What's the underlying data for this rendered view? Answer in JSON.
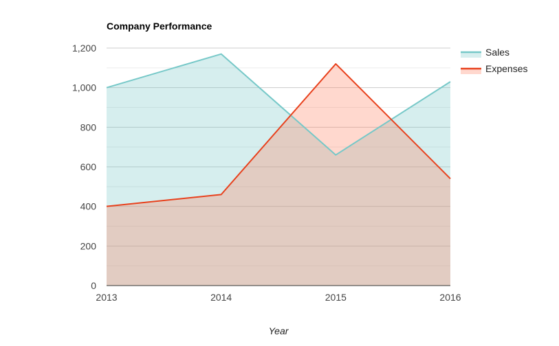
{
  "chart_data": {
    "type": "area",
    "title": "Company Performance",
    "xlabel": "Year",
    "ylabel": "",
    "categories": [
      "2013",
      "2014",
      "2015",
      "2016"
    ],
    "series": [
      {
        "name": "Sales",
        "values": [
          1000,
          1170,
          660,
          1030
        ],
        "color": "#76C8C8",
        "fill": "#76C8C8"
      },
      {
        "name": "Expenses",
        "values": [
          400,
          460,
          1120,
          540
        ],
        "color": "#E8401C",
        "fill": "#FF7F5E"
      }
    ],
    "ylim": [
      0,
      1200
    ],
    "yticks": [
      0,
      200,
      400,
      600,
      800,
      1000,
      1200
    ],
    "ytick_labels": [
      "0",
      "200",
      "400",
      "600",
      "800",
      "1,000",
      "1,200"
    ],
    "grid": true,
    "legend_position": "right",
    "colors": {
      "gridline": "#cccccc",
      "minor_gridline": "#ebebeb",
      "baseline": "#333333"
    }
  }
}
